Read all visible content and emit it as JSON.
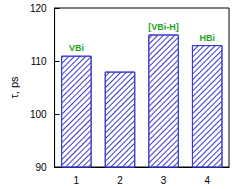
{
  "chart_data": {
    "type": "bar",
    "y_label": "τ, ps",
    "categories": [
      "1",
      "2",
      "3",
      "4"
    ],
    "values": [
      111,
      108,
      115,
      113
    ],
    "color": "#3a3ad0",
    "ylim": [
      90,
      120
    ],
    "yticks": [
      90,
      100,
      110,
      120
    ],
    "grid": false,
    "annotations": [
      {
        "text": "VBi",
        "category": "1"
      },
      {
        "text": "[VBi-H]",
        "category": "3"
      },
      {
        "text": "HBi",
        "category": "4"
      }
    ]
  }
}
